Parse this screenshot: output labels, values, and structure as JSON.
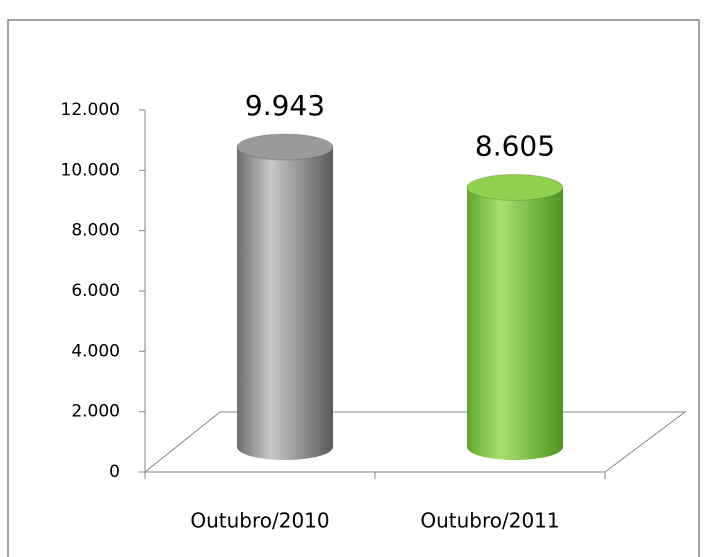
{
  "chart_data": {
    "type": "bar",
    "style": "3d-cylinder",
    "categories": [
      "Outubro/2010",
      "Outubro/2011"
    ],
    "values": [
      9943,
      8605
    ],
    "value_labels": [
      "9.943",
      "8.605"
    ],
    "colors": [
      "#9a9a9a",
      "#8fd14f"
    ],
    "ylim": [
      0,
      12000
    ],
    "yticks": [
      0,
      {
        "value": 2000,
        "label": "2.000"
      },
      {
        "value": 4000,
        "label": "4.000"
      },
      {
        "value": 6000,
        "label": "6.000"
      },
      {
        "value": 8000,
        "label": "8.000"
      },
      {
        "value": 10000,
        "label": "10.000"
      },
      {
        "value": 12000,
        "label": "12.000"
      }
    ]
  }
}
